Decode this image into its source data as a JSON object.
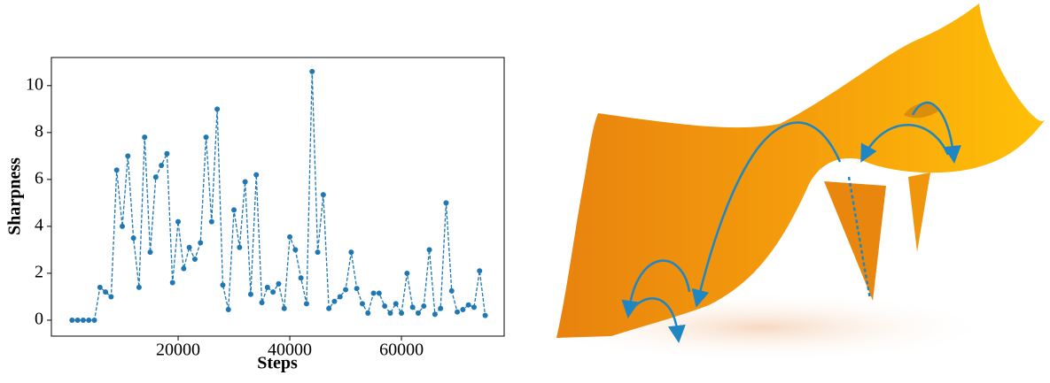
{
  "chart_data": {
    "type": "line",
    "x_label": "Steps",
    "y_label": "Sharpness",
    "x": [
      1000,
      2000,
      3000,
      4000,
      5000,
      6000,
      7000,
      8000,
      9000,
      10000,
      11000,
      12000,
      13000,
      14000,
      15000,
      16000,
      17000,
      18000,
      19000,
      20000,
      21000,
      22000,
      23000,
      24000,
      25000,
      26000,
      27000,
      28000,
      29000,
      30000,
      31000,
      32000,
      33000,
      34000,
      35000,
      36000,
      37000,
      38000,
      39000,
      40000,
      41000,
      42000,
      43000,
      44000,
      45000,
      46000,
      47000,
      48000,
      49000,
      50000,
      51000,
      52000,
      53000,
      54000,
      55000,
      56000,
      57000,
      58000,
      59000,
      60000,
      61000,
      62000,
      63000,
      64000,
      65000,
      66000,
      67000,
      68000,
      69000,
      70000,
      71000,
      72000,
      73000,
      74000,
      75000
    ],
    "series": [
      {
        "name": "Sharpness",
        "color": "#1f77b4",
        "line_style": "dashed",
        "values": [
          0,
          0,
          0,
          0,
          0,
          1.4,
          1.2,
          1.0,
          6.4,
          4.0,
          7.0,
          3.5,
          1.4,
          7.8,
          2.9,
          6.1,
          6.6,
          7.1,
          1.6,
          4.2,
          2.2,
          3.1,
          2.6,
          3.3,
          7.8,
          4.2,
          9.0,
          1.5,
          0.45,
          4.7,
          3.1,
          5.9,
          1.1,
          6.2,
          0.75,
          1.4,
          1.2,
          1.55,
          0.5,
          3.55,
          3.0,
          1.8,
          0.7,
          10.6,
          2.9,
          5.35,
          0.5,
          0.8,
          1.0,
          1.3,
          2.9,
          1.35,
          0.7,
          0.3,
          1.15,
          1.15,
          0.6,
          0.3,
          0.7,
          0.3,
          2.0,
          0.55,
          0.3,
          0.6,
          3.0,
          0.25,
          0.5,
          5.0,
          1.25,
          0.35,
          0.45,
          0.65,
          0.55,
          2.1,
          0.2
        ]
      }
    ],
    "xlim": [
      -2700,
      78400
    ],
    "ylim": [
      -0.68,
      11.2
    ],
    "xticks": [
      20000,
      40000,
      60000
    ],
    "yticks": [
      0,
      2,
      4,
      6,
      8,
      10
    ],
    "grid": false
  }
}
